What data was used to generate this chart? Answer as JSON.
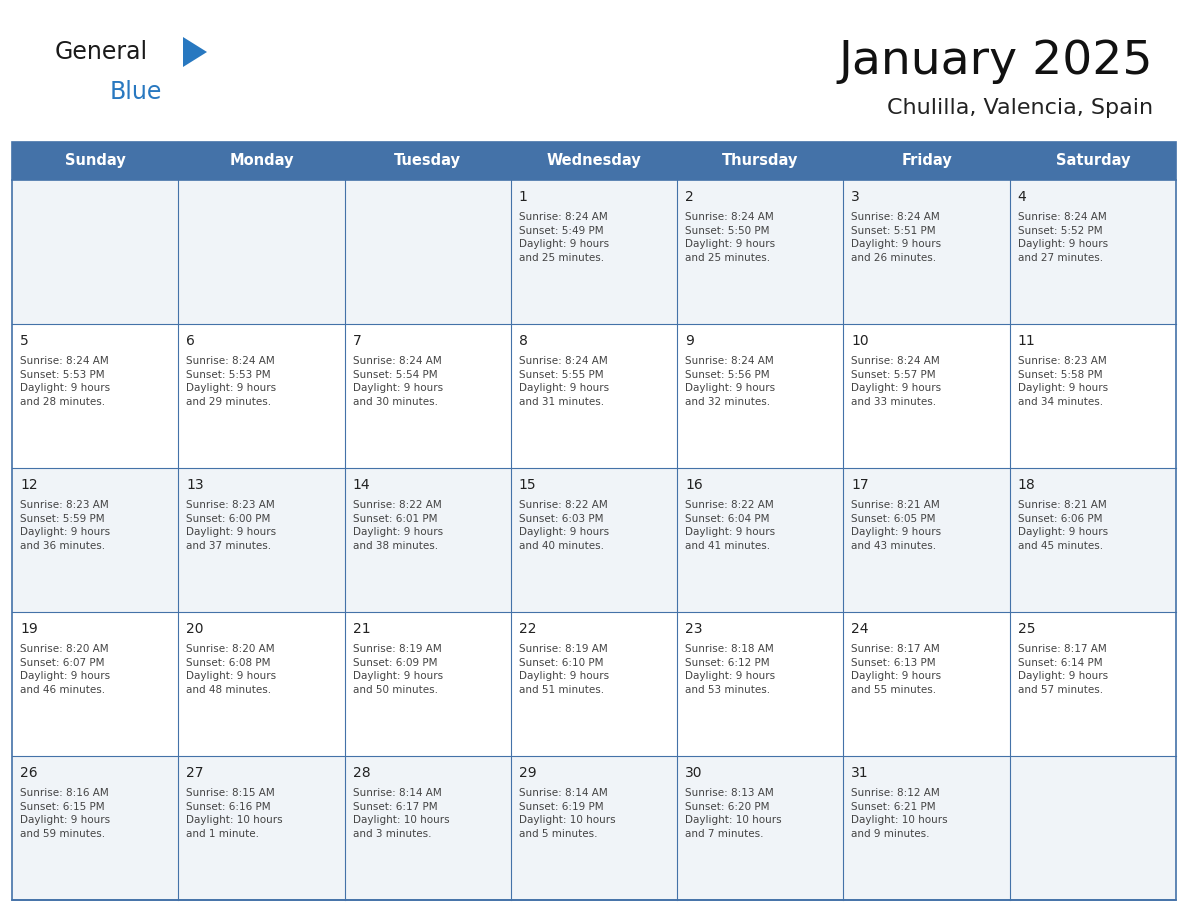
{
  "title": "January 2025",
  "subtitle": "Chulilla, Valencia, Spain",
  "header_color": "#4472a8",
  "header_text_color": "#ffffff",
  "row_colors": [
    "#f0f4f8",
    "#ffffff"
  ],
  "border_color": "#4472a8",
  "day_number_color": "#222222",
  "info_text_color": "#444444",
  "days_of_week": [
    "Sunday",
    "Monday",
    "Tuesday",
    "Wednesday",
    "Thursday",
    "Friday",
    "Saturday"
  ],
  "calendar_data": [
    [
      {
        "day": "",
        "info": ""
      },
      {
        "day": "",
        "info": ""
      },
      {
        "day": "",
        "info": ""
      },
      {
        "day": "1",
        "info": "Sunrise: 8:24 AM\nSunset: 5:49 PM\nDaylight: 9 hours\nand 25 minutes."
      },
      {
        "day": "2",
        "info": "Sunrise: 8:24 AM\nSunset: 5:50 PM\nDaylight: 9 hours\nand 25 minutes."
      },
      {
        "day": "3",
        "info": "Sunrise: 8:24 AM\nSunset: 5:51 PM\nDaylight: 9 hours\nand 26 minutes."
      },
      {
        "day": "4",
        "info": "Sunrise: 8:24 AM\nSunset: 5:52 PM\nDaylight: 9 hours\nand 27 minutes."
      }
    ],
    [
      {
        "day": "5",
        "info": "Sunrise: 8:24 AM\nSunset: 5:53 PM\nDaylight: 9 hours\nand 28 minutes."
      },
      {
        "day": "6",
        "info": "Sunrise: 8:24 AM\nSunset: 5:53 PM\nDaylight: 9 hours\nand 29 minutes."
      },
      {
        "day": "7",
        "info": "Sunrise: 8:24 AM\nSunset: 5:54 PM\nDaylight: 9 hours\nand 30 minutes."
      },
      {
        "day": "8",
        "info": "Sunrise: 8:24 AM\nSunset: 5:55 PM\nDaylight: 9 hours\nand 31 minutes."
      },
      {
        "day": "9",
        "info": "Sunrise: 8:24 AM\nSunset: 5:56 PM\nDaylight: 9 hours\nand 32 minutes."
      },
      {
        "day": "10",
        "info": "Sunrise: 8:24 AM\nSunset: 5:57 PM\nDaylight: 9 hours\nand 33 minutes."
      },
      {
        "day": "11",
        "info": "Sunrise: 8:23 AM\nSunset: 5:58 PM\nDaylight: 9 hours\nand 34 minutes."
      }
    ],
    [
      {
        "day": "12",
        "info": "Sunrise: 8:23 AM\nSunset: 5:59 PM\nDaylight: 9 hours\nand 36 minutes."
      },
      {
        "day": "13",
        "info": "Sunrise: 8:23 AM\nSunset: 6:00 PM\nDaylight: 9 hours\nand 37 minutes."
      },
      {
        "day": "14",
        "info": "Sunrise: 8:22 AM\nSunset: 6:01 PM\nDaylight: 9 hours\nand 38 minutes."
      },
      {
        "day": "15",
        "info": "Sunrise: 8:22 AM\nSunset: 6:03 PM\nDaylight: 9 hours\nand 40 minutes."
      },
      {
        "day": "16",
        "info": "Sunrise: 8:22 AM\nSunset: 6:04 PM\nDaylight: 9 hours\nand 41 minutes."
      },
      {
        "day": "17",
        "info": "Sunrise: 8:21 AM\nSunset: 6:05 PM\nDaylight: 9 hours\nand 43 minutes."
      },
      {
        "day": "18",
        "info": "Sunrise: 8:21 AM\nSunset: 6:06 PM\nDaylight: 9 hours\nand 45 minutes."
      }
    ],
    [
      {
        "day": "19",
        "info": "Sunrise: 8:20 AM\nSunset: 6:07 PM\nDaylight: 9 hours\nand 46 minutes."
      },
      {
        "day": "20",
        "info": "Sunrise: 8:20 AM\nSunset: 6:08 PM\nDaylight: 9 hours\nand 48 minutes."
      },
      {
        "day": "21",
        "info": "Sunrise: 8:19 AM\nSunset: 6:09 PM\nDaylight: 9 hours\nand 50 minutes."
      },
      {
        "day": "22",
        "info": "Sunrise: 8:19 AM\nSunset: 6:10 PM\nDaylight: 9 hours\nand 51 minutes."
      },
      {
        "day": "23",
        "info": "Sunrise: 8:18 AM\nSunset: 6:12 PM\nDaylight: 9 hours\nand 53 minutes."
      },
      {
        "day": "24",
        "info": "Sunrise: 8:17 AM\nSunset: 6:13 PM\nDaylight: 9 hours\nand 55 minutes."
      },
      {
        "day": "25",
        "info": "Sunrise: 8:17 AM\nSunset: 6:14 PM\nDaylight: 9 hours\nand 57 minutes."
      }
    ],
    [
      {
        "day": "26",
        "info": "Sunrise: 8:16 AM\nSunset: 6:15 PM\nDaylight: 9 hours\nand 59 minutes."
      },
      {
        "day": "27",
        "info": "Sunrise: 8:15 AM\nSunset: 6:16 PM\nDaylight: 10 hours\nand 1 minute."
      },
      {
        "day": "28",
        "info": "Sunrise: 8:14 AM\nSunset: 6:17 PM\nDaylight: 10 hours\nand 3 minutes."
      },
      {
        "day": "29",
        "info": "Sunrise: 8:14 AM\nSunset: 6:19 PM\nDaylight: 10 hours\nand 5 minutes."
      },
      {
        "day": "30",
        "info": "Sunrise: 8:13 AM\nSunset: 6:20 PM\nDaylight: 10 hours\nand 7 minutes."
      },
      {
        "day": "31",
        "info": "Sunrise: 8:12 AM\nSunset: 6:21 PM\nDaylight: 10 hours\nand 9 minutes."
      },
      {
        "day": "",
        "info": ""
      }
    ]
  ],
  "logo_general_color": "#1a1a1a",
  "logo_blue_color": "#2878c0",
  "logo_triangle_color": "#2878c0"
}
